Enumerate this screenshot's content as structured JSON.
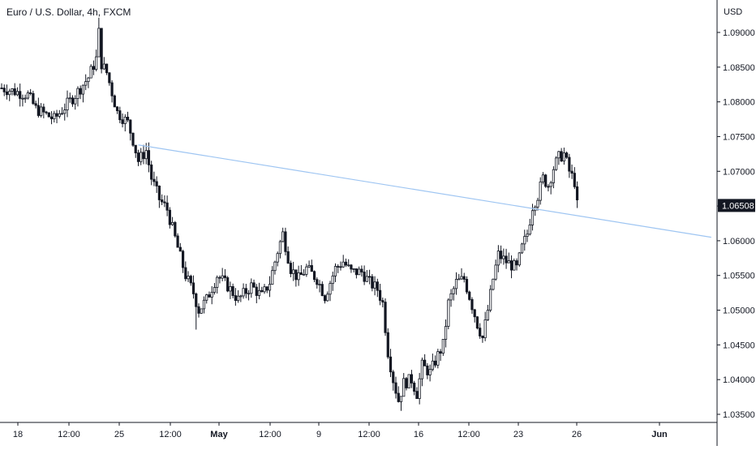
{
  "header": {
    "title": "Euro / U.S. Dollar, 4h, FXCM",
    "currency": "USD"
  },
  "colors": {
    "candle": "#131722",
    "trendline": "#9ec5f2",
    "axis_line": "#131722",
    "price_badge_bg": "#131722",
    "price_badge_text": "#ffffff"
  },
  "chart_data": {
    "type": "candlestick",
    "title": "Euro / U.S. Dollar, 4h, FXCM",
    "ylabel": "USD",
    "ylim": [
      1.0335,
      1.0935
    ],
    "y_ticks": [
      "1.09000",
      "1.08500",
      "1.08000",
      "1.07500",
      "1.07000",
      "1.06500",
      "1.06000",
      "1.05500",
      "1.05000",
      "1.04500",
      "1.04000",
      "1.03500"
    ],
    "x_tick_labels": [
      "18",
      "12:00",
      "25",
      "12:00",
      "May",
      "12:00",
      "9",
      "12:00",
      "16",
      "12:00",
      "23",
      "26",
      "Jun"
    ],
    "last_price": "1.06508",
    "trendline": {
      "from": {
        "time": "2022-04-26 16:00",
        "price": 1.0738
      },
      "to": {
        "time": "2022-06-02 00:00",
        "price": 1.0605
      }
    },
    "anchors": [
      [
        0,
        1.082
      ],
      [
        10,
        1.081
      ],
      [
        13,
        1.079
      ],
      [
        20,
        1.0775
      ],
      [
        28,
        1.081
      ],
      [
        33,
        1.0835
      ],
      [
        36,
        1.0862
      ],
      [
        37,
        1.09
      ],
      [
        38,
        1.0855
      ],
      [
        40,
        1.0842
      ],
      [
        44,
        1.0785
      ],
      [
        48,
        1.077
      ],
      [
        50,
        1.0745
      ],
      [
        52,
        1.0715
      ],
      [
        55,
        1.073
      ],
      [
        57,
        1.069
      ],
      [
        60,
        1.066
      ],
      [
        63,
        1.0645
      ],
      [
        67,
        1.059
      ],
      [
        70,
        1.055
      ],
      [
        73,
        1.0525
      ],
      [
        75,
        1.05
      ],
      [
        78,
        1.0515
      ],
      [
        82,
        1.055
      ],
      [
        86,
        1.0535
      ],
      [
        90,
        1.0515
      ],
      [
        95,
        1.0535
      ],
      [
        99,
        1.052
      ],
      [
        102,
        1.054
      ],
      [
        105,
        1.0585
      ],
      [
        107,
        1.061
      ],
      [
        110,
        1.056
      ],
      [
        113,
        1.0545
      ],
      [
        116,
        1.056
      ],
      [
        120,
        1.0545
      ],
      [
        123,
        1.052
      ],
      [
        127,
        1.056
      ],
      [
        130,
        1.057
      ],
      [
        133,
        1.0555
      ],
      [
        137,
        1.0555
      ],
      [
        140,
        1.054
      ],
      [
        143,
        1.053
      ],
      [
        145,
        1.051
      ],
      [
        147,
        1.044
      ],
      [
        149,
        1.04
      ],
      [
        151,
        1.037
      ],
      [
        153,
        1.0395
      ],
      [
        156,
        1.04
      ],
      [
        158,
        1.038
      ],
      [
        160,
        1.042
      ],
      [
        163,
        1.041
      ],
      [
        166,
        1.0435
      ],
      [
        168,
        1.045
      ],
      [
        170,
        1.051
      ],
      [
        173,
        1.054
      ],
      [
        176,
        1.0545
      ],
      [
        178,
        1.052
      ],
      [
        181,
        1.048
      ],
      [
        183,
        1.046
      ],
      [
        185,
        1.05
      ],
      [
        187,
        1.0545
      ],
      [
        189,
        1.058
      ],
      [
        192,
        1.057
      ],
      [
        194,
        1.0565
      ],
      [
        196,
        1.056
      ],
      [
        198,
        1.059
      ],
      [
        200,
        1.061
      ],
      [
        202,
        1.065
      ],
      [
        204,
        1.0665
      ],
      [
        206,
        1.069
      ],
      [
        208,
        1.068
      ],
      [
        210,
        1.0705
      ],
      [
        212,
        1.072
      ],
      [
        214,
        1.0725
      ],
      [
        216,
        1.07
      ],
      [
        218,
        1.0685
      ],
      [
        219,
        1.0651
      ]
    ],
    "high_points": [
      [
        37,
        1.0932
      ]
    ],
    "low_points": [
      [
        152,
        1.0355
      ],
      [
        74,
        1.0472
      ]
    ]
  }
}
